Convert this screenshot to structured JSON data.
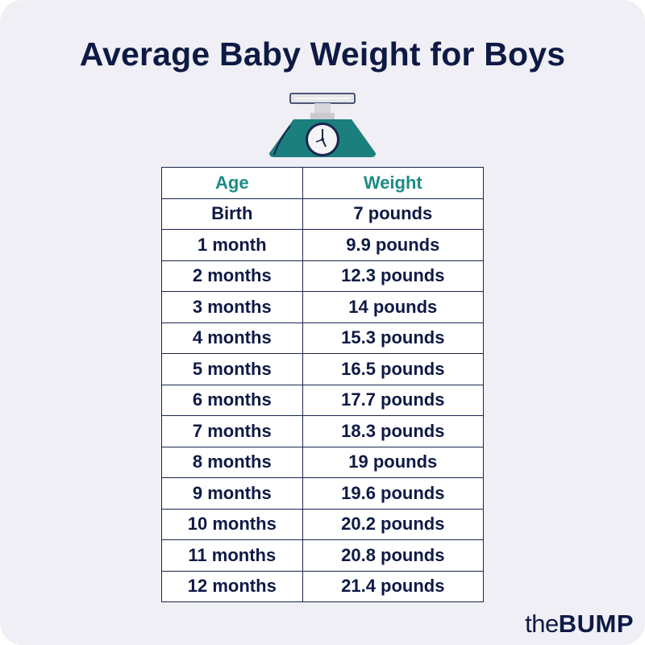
{
  "title": "Average Baby Weight for Boys",
  "scale_icon": "baby-scale-icon",
  "table": {
    "headers": [
      "Age",
      "Weight"
    ],
    "rows": [
      [
        "Birth",
        "7 pounds"
      ],
      [
        "1 month",
        "9.9 pounds"
      ],
      [
        "2 months",
        "12.3 pounds"
      ],
      [
        "3 months",
        "14 pounds"
      ],
      [
        "4 months",
        "15.3 pounds"
      ],
      [
        "5 months",
        "16.5 pounds"
      ],
      [
        "6 months",
        "17.7 pounds"
      ],
      [
        "7 months",
        "18.3 pounds"
      ],
      [
        "8 months",
        "19 pounds"
      ],
      [
        "9 months",
        "19.6 pounds"
      ],
      [
        "10 months",
        "20.2 pounds"
      ],
      [
        "11 months",
        "20.8 pounds"
      ],
      [
        "12 months",
        "21.4 pounds"
      ]
    ]
  },
  "logo": {
    "the": "the",
    "bump": "BUMP"
  },
  "colors": {
    "background": "#efeff5",
    "navy": "#0e1a45",
    "teal": "#1a8c84"
  }
}
